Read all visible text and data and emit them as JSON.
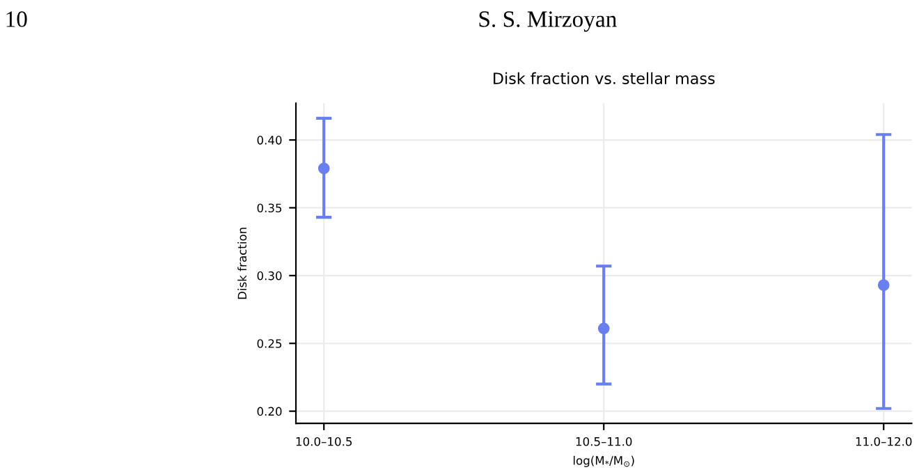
{
  "chart_data": {
    "type": "scatter",
    "title": "Disk fraction vs. stellar mass",
    "xlabel": "log(M$_{*}$/M$_{⊙}$)",
    "ylabel": "Disk fraction",
    "annotations": [
      "10",
      "S. S. Mirzoyan"
    ],
    "categories": [
      "10.0–10.5",
      "10.5–11.0",
      "11.0–12.0"
    ],
    "series": [
      {
        "color": "#6a7fef",
        "values": [
          0.379,
          0.261,
          0.293
        ],
        "errors": [
          [
            0.343,
            0.416
          ],
          [
            0.22,
            0.307
          ],
          [
            0.202,
            0.404
          ]
        ]
      }
    ],
    "ylim": [
      0.191,
      0.427
    ],
    "yticks": [
      {
        "value": 0.2,
        "label": "0.20"
      },
      0.25,
      {
        "value": 0.3,
        "label": "0.30"
      },
      0.35,
      {
        "value": 0.4,
        "label": "0.40"
      }
    ],
    "grid": true,
    "marker": "circle"
  }
}
